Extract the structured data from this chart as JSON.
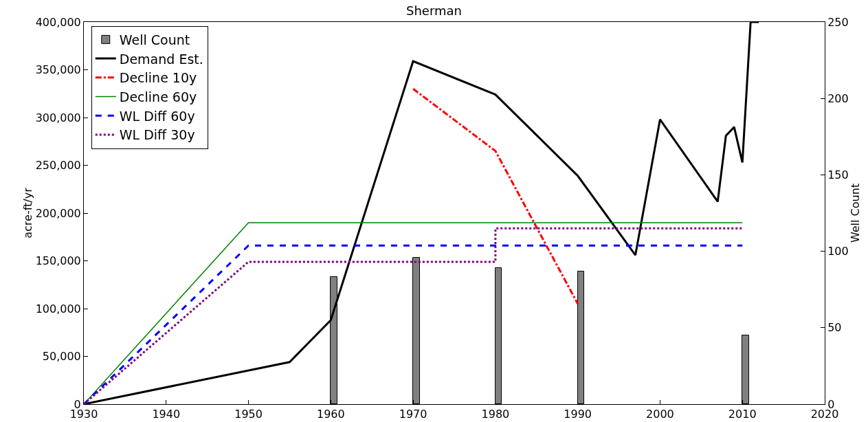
{
  "chart_data": {
    "type": "line",
    "title": "Sherman",
    "ylabel": "acre-ft/yr",
    "y2label": "Well Count",
    "xlim": [
      1930,
      2020
    ],
    "xticks": [
      1930,
      1940,
      1950,
      1960,
      1970,
      1980,
      1990,
      2000,
      2010,
      2020
    ],
    "ylim": [
      0,
      400000
    ],
    "yticks": [
      {
        "value": 0,
        "label": "0"
      },
      {
        "value": 50000,
        "label": "50,000"
      },
      {
        "value": 100000,
        "label": "100,000"
      },
      {
        "value": 150000,
        "label": "150,000"
      },
      {
        "value": 200000,
        "label": "200,000"
      },
      {
        "value": 250000,
        "label": "250,000"
      },
      {
        "value": 300000,
        "label": "300,000"
      },
      {
        "value": 350000,
        "label": "350,000"
      },
      {
        "value": 400000,
        "label": "400,000"
      }
    ],
    "y2lim": [
      0,
      250
    ],
    "y2ticks": [
      0,
      50,
      100,
      150,
      200,
      250
    ],
    "grid": false,
    "legend": "top left",
    "marker": "none",
    "series": [
      {
        "name": "Demand Est.",
        "color": "#000000",
        "line_style": "solid",
        "x": [
          1930,
          1955,
          1960,
          1970,
          1980,
          1990,
          1997,
          2000,
          2007,
          2008,
          2009,
          2010,
          2011,
          2012
        ],
        "values": [
          0,
          44000,
          88000,
          359000,
          324000,
          239000,
          156000,
          298000,
          212000,
          281000,
          290000,
          253000,
          400000,
          400000
        ]
      },
      {
        "name": "Decline 10y",
        "color": "#ff0000",
        "line_style": "dashdot",
        "x": [
          1970,
          1980,
          1990
        ],
        "values": [
          330000,
          265000,
          105000
        ]
      },
      {
        "name": "Decline 60y",
        "color": "#008000",
        "line_style": "solid",
        "x": [
          1930,
          1950,
          2010
        ],
        "values": [
          0,
          190000,
          190000
        ]
      },
      {
        "name": "WL Diff 60y",
        "color": "#0000ff",
        "line_style": "dashed",
        "x": [
          1930,
          1950,
          2010
        ],
        "values": [
          0,
          166000,
          166000
        ]
      },
      {
        "name": "WL Diff 30y",
        "color": "#800080",
        "line_style": "dotted",
        "x": [
          1930,
          1950,
          1980,
          1980,
          2010
        ],
        "values": [
          0,
          149000,
          149000,
          184000,
          184000
        ]
      },
      {
        "name": "Well Count",
        "type": "bar",
        "axis": "y2",
        "color": "#808080",
        "x": [
          1960,
          1970,
          1980,
          1990,
          2010
        ],
        "values": [
          83,
          96,
          89,
          87,
          45
        ]
      }
    ]
  }
}
